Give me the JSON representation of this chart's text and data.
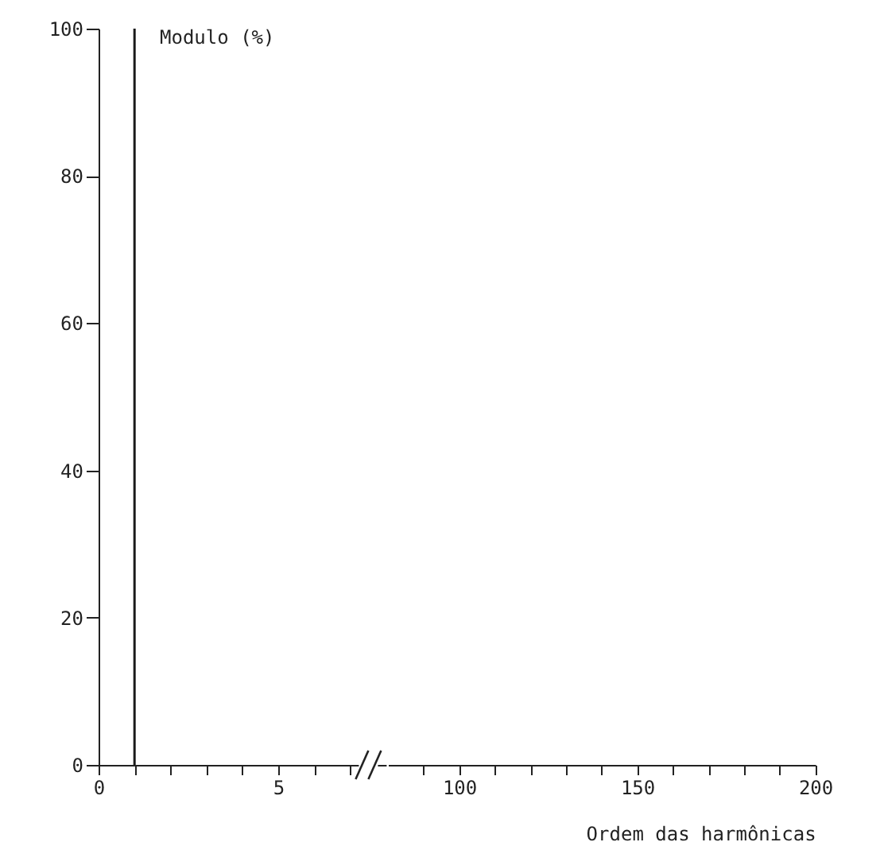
{
  "chart_data": [
    {
      "type": "bar",
      "ylabel": "Modulo (%)",
      "x": [
        1
      ],
      "values": [
        100
      ],
      "color": "#1a1a1a",
      "xlim": [
        0,
        7
      ],
      "xticks": [
        0,
        {
          "value": 1,
          "label": null
        },
        {
          "value": 2,
          "label": null
        },
        {
          "value": 3,
          "label": null
        },
        {
          "value": 4,
          "label": null
        },
        5,
        {
          "value": 6,
          "label": null
        },
        {
          "value": 7,
          "label": null
        }
      ],
      "ylim": [
        0,
        100
      ],
      "yticks": [
        0,
        20,
        40,
        60,
        80,
        100
      ],
      "grid": false
    },
    {
      "type": "bar",
      "xlabel": "Ordem das harmônicas",
      "xlim": [
        80,
        200
      ],
      "xticks": [
        {
          "value": 90,
          "label": null
        },
        100,
        {
          "value": 110,
          "label": null
        },
        {
          "value": 120,
          "label": null
        },
        {
          "value": 130,
          "label": null
        },
        {
          "value": 140,
          "label": null
        },
        150,
        {
          "value": 160,
          "label": null
        },
        {
          "value": 170,
          "label": null
        },
        {
          "value": 180,
          "label": null
        },
        {
          "value": 190,
          "label": null
        },
        200
      ],
      "ylim": [
        0,
        100
      ],
      "tick_labels": "x",
      "grid": false
    }
  ]
}
